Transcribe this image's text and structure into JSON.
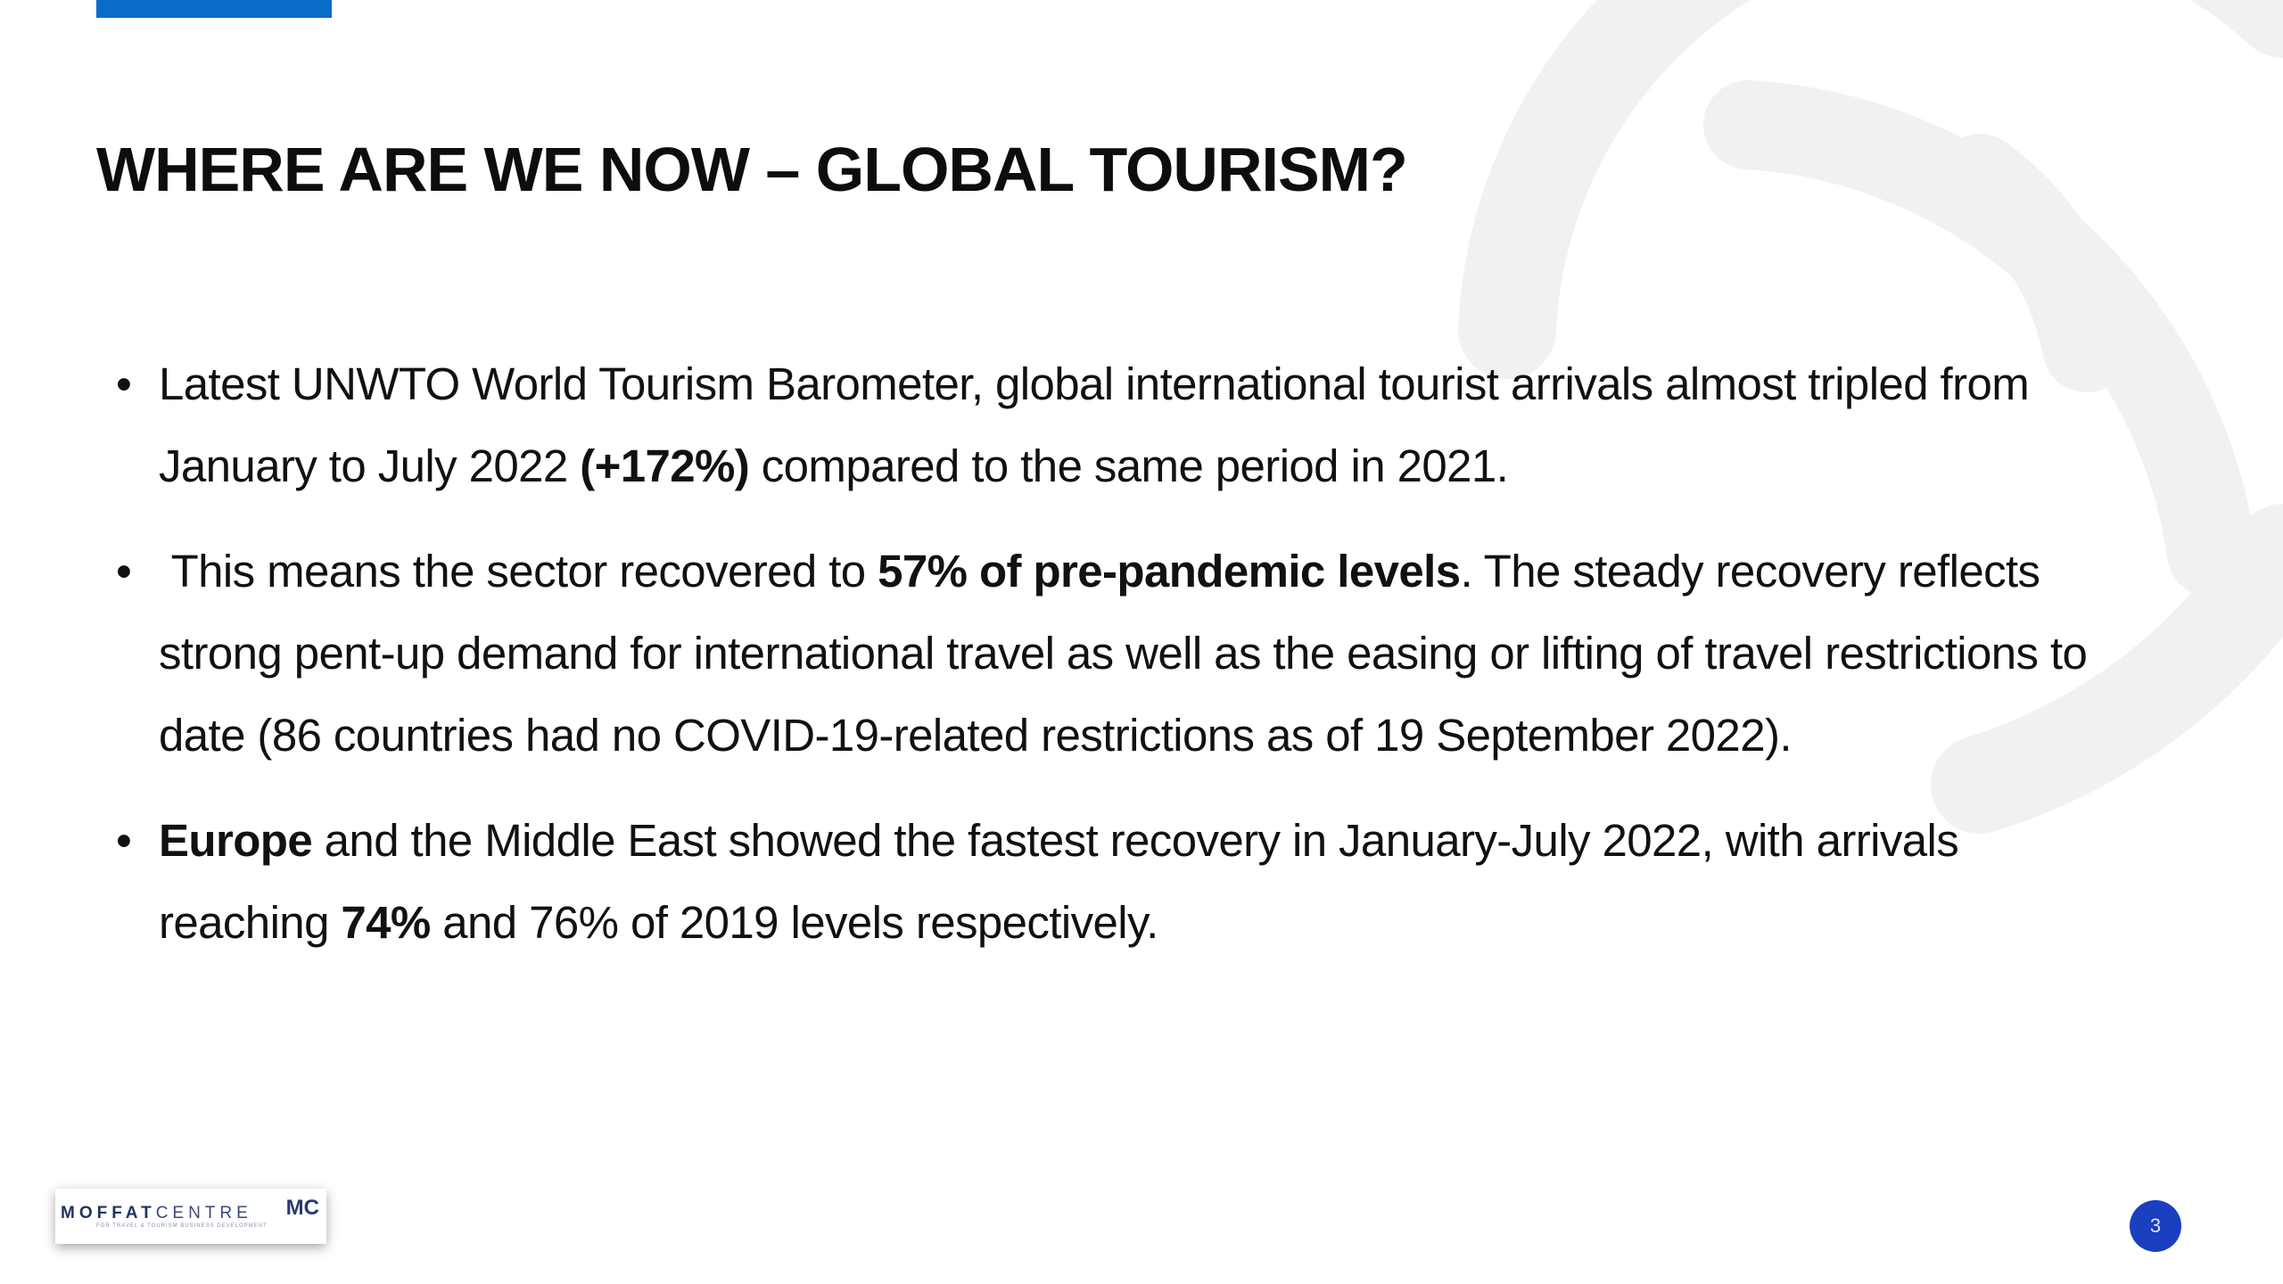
{
  "slide": {
    "title": "WHERE ARE WE NOW – GLOBAL TOURISM?",
    "bullets": [
      {
        "parts": [
          "Latest UNWTO World Tourism Barometer, global international tourist arrivals almost tripled from January to July 2022 ",
          "(+172%)",
          " compared to the same period in 2021."
        ]
      },
      {
        "parts": [
          " This means the sector recovered to ",
          "57% of pre-pandemic levels",
          ". The steady recovery reflects strong pent-up demand for international travel as well as the easing or lifting of travel restrictions to date (86 countries had no COVID-19-related restrictions as of 19 September 2022)."
        ]
      },
      {
        "parts": [
          "Europe",
          " and the Middle East showed the fastest recovery in January-July 2022, with arrivals reaching ",
          "74%",
          " and 76% of 2019 levels respectively."
        ]
      }
    ],
    "bullet_char": "•",
    "page_number": "3"
  },
  "logo": {
    "main_a": "MOFFAT",
    "main_b": "CENTRE",
    "subtitle": "FOR TRAVEL & TOURISM BUSINESS DEVELOPMENT",
    "mark": "MC"
  },
  "colors": {
    "accent_bar": "#0b6bc9",
    "page_badge": "#1a3fbf",
    "decoration": "#f1f1f1"
  }
}
